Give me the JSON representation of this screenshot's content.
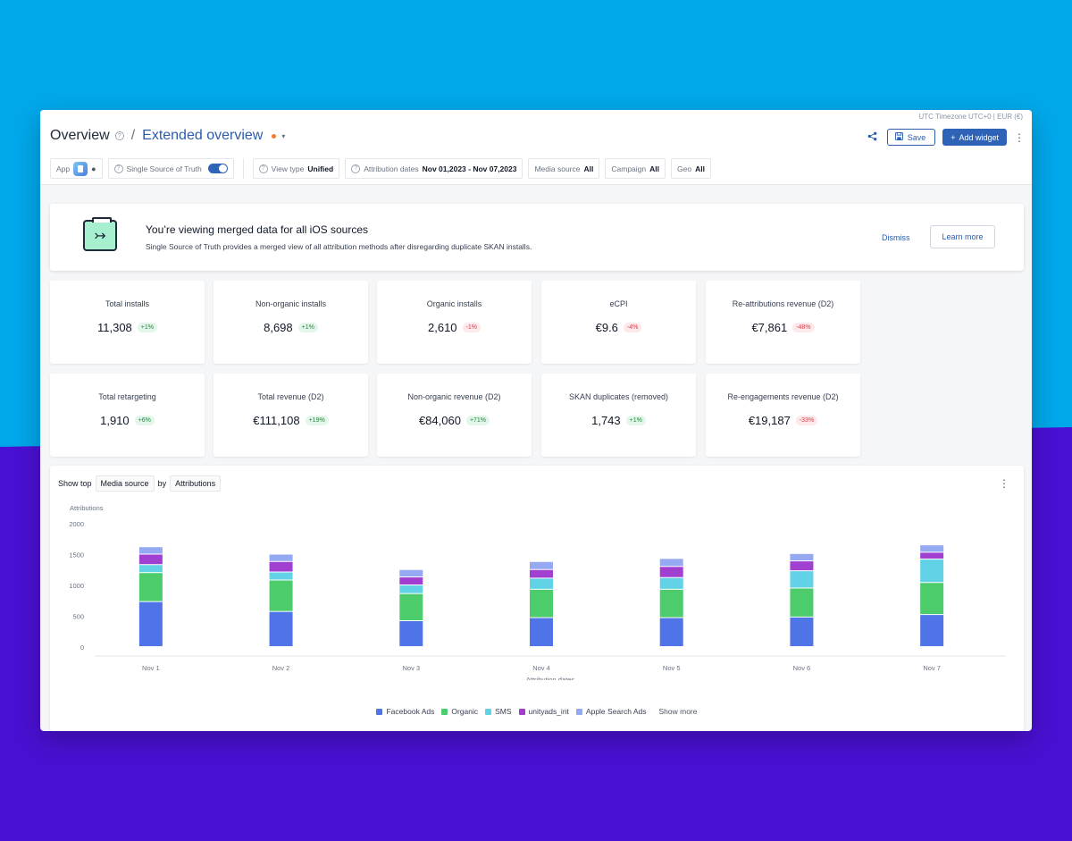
{
  "header": {
    "timezone": "UTC Timezone UTC+0 | EUR (€)",
    "title": "Overview",
    "subtitle": "Extended overview",
    "save_label": "Save",
    "add_widget_label": "Add widget",
    "add_widget_plus": "+"
  },
  "filters": {
    "app_label": "App",
    "ssot_label": "Single Source of Truth",
    "view_type_label": "View type",
    "view_type_value": "Unified",
    "attribution_label": "Attribution dates",
    "attribution_value": "Nov 01,2023 - Nov 07,2023",
    "media_label": "Media source",
    "media_value": "All",
    "campaign_label": "Campaign",
    "campaign_value": "All",
    "geo_label": "Geo",
    "geo_value": "All"
  },
  "banner": {
    "title": "You’re viewing merged data for all iOS sources",
    "text": "Single Source of Truth provides a merged view of all attribution methods after disregarding duplicate SKAN installs.",
    "dismiss": "Dismiss",
    "learn_more": "Learn more"
  },
  "kpis": [
    {
      "label": "Total installs",
      "value": "11,308",
      "change": "+1%",
      "trend": "up"
    },
    {
      "label": "Non-organic installs",
      "value": "8,698",
      "change": "+1%",
      "trend": "up"
    },
    {
      "label": "Organic installs",
      "value": "2,610",
      "change": "-1%",
      "trend": "down"
    },
    {
      "label": "eCPI",
      "value": "€9.6",
      "change": "-4%",
      "trend": "down"
    },
    {
      "label": "Re-attributions revenue (D2)",
      "value": "€7,861",
      "change": "-48%",
      "trend": "down"
    },
    {
      "label": "Total retargeting",
      "value": "1,910",
      "change": "+6%",
      "trend": "up"
    },
    {
      "label": "Total revenue (D2)",
      "value": "€111,108",
      "change": "+19%",
      "trend": "up"
    },
    {
      "label": "Non-organic revenue (D2)",
      "value": "€84,060",
      "change": "+71%",
      "trend": "up"
    },
    {
      "label": "SKAN duplicates (removed)",
      "value": "1,743",
      "change": "+1%",
      "trend": "up"
    },
    {
      "label": "Re-engagements revenue (D2)",
      "value": "€19,187",
      "change": "-33%",
      "trend": "down"
    }
  ],
  "chart_controls": {
    "show_top": "Show top",
    "dimension": "Media source",
    "by": "by",
    "metric": "Attributions"
  },
  "chart_data": {
    "type": "bar",
    "stacked": true,
    "ylabel": "Attributions",
    "xlabel": "Attribution dates",
    "ylim": [
      0,
      2000
    ],
    "yticks": [
      0,
      500,
      1000,
      1500,
      2000
    ],
    "categories": [
      "Nov 1",
      "Nov 2",
      "Nov 3",
      "Nov 4",
      "Nov 5",
      "Nov 6",
      "Nov 7"
    ],
    "series": [
      {
        "name": "Facebook Ads",
        "color": "#4f74e8",
        "values": [
          730,
          570,
          420,
          470,
          470,
          480,
          520
        ]
      },
      {
        "name": "Organic",
        "color": "#4ccc6a",
        "values": [
          470,
          510,
          440,
          460,
          460,
          470,
          520
        ]
      },
      {
        "name": "SMS",
        "color": "#62d3e6",
        "values": [
          130,
          130,
          140,
          180,
          190,
          280,
          380
        ]
      },
      {
        "name": "unityads_int",
        "color": "#a13fd1",
        "values": [
          170,
          170,
          130,
          140,
          180,
          160,
          110
        ]
      },
      {
        "name": "Apple Search Ads",
        "color": "#94a9f1",
        "values": [
          120,
          120,
          120,
          130,
          130,
          120,
          120
        ]
      }
    ],
    "grid": false,
    "legend": "bottom"
  },
  "legend_more": "Show more"
}
